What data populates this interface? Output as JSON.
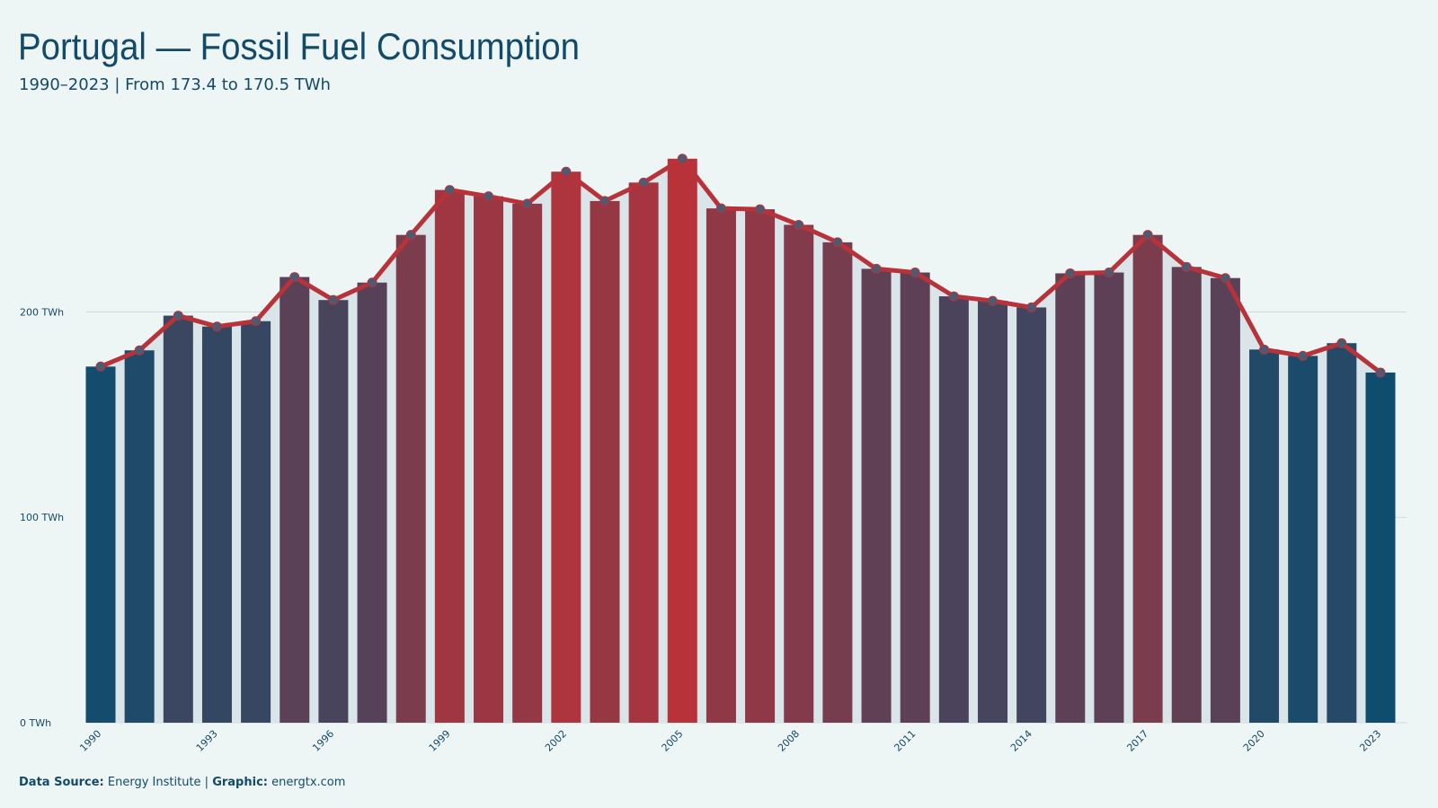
{
  "chart_data": {
    "type": "bar-line",
    "title": "Portugal — Fossil Fuel Consumption",
    "subtitle": "1990–2023 | From 173.4 to 170.5 TWh",
    "x": [
      1990,
      1991,
      1992,
      1993,
      1994,
      1995,
      1996,
      1997,
      1998,
      1999,
      2000,
      2001,
      2002,
      2003,
      2004,
      2005,
      2006,
      2007,
      2008,
      2009,
      2010,
      2011,
      2012,
      2013,
      2014,
      2015,
      2016,
      2017,
      2018,
      2019,
      2020,
      2021,
      2022,
      2023
    ],
    "values": [
      173.4,
      181.3,
      198.2,
      192.9,
      195.5,
      217.0,
      205.8,
      214.3,
      237.5,
      259.4,
      256.3,
      252.7,
      268.3,
      254.0,
      263.0,
      274.6,
      250.4,
      250.0,
      242.4,
      233.9,
      221.0,
      219.2,
      207.6,
      205.4,
      202.2,
      218.8,
      219.2,
      237.5,
      221.9,
      216.5,
      181.7,
      178.6,
      184.8,
      170.5
    ],
    "xticks": [
      1990,
      1993,
      1996,
      1999,
      2002,
      2005,
      2008,
      2011,
      2014,
      2017,
      2020,
      2023
    ],
    "ylim": [
      0,
      285
    ],
    "yticks": [
      {
        "value": 0,
        "label": "0 TWh"
      },
      {
        "value": 100,
        "label": "100 TWh"
      },
      {
        "value": 200,
        "label": "200 TWh"
      }
    ],
    "grid": true,
    "bar_colors": {
      "low": "#0e4d6e",
      "high": "#b8323a"
    },
    "line_color": "#b8323a",
    "marker_color": "#4d5a72",
    "area_color": "#dae5e9",
    "footer": {
      "source_label": "Data Source:",
      "source": "Energy Institute |",
      "graphic_label": "Graphic:",
      "graphic": "energtx.com"
    }
  }
}
